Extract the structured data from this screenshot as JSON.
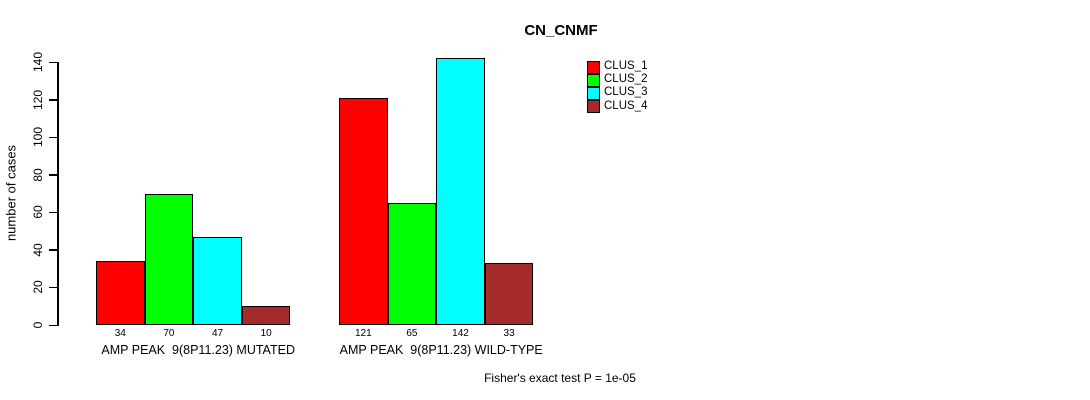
{
  "title": "CN_CNMF",
  "ylabel": "number of cases",
  "footer": "Fisher's exact test P = 1e-05",
  "legend": [
    {
      "label": "CLUS_1",
      "color": "#FF0000"
    },
    {
      "label": "CLUS_2",
      "color": "#00FF00"
    },
    {
      "label": "CLUS_3",
      "color": "#00FFFF"
    },
    {
      "label": "CLUS_4",
      "color": "#A52A2A"
    }
  ],
  "chart_data": {
    "type": "bar",
    "title": "CN_CNMF",
    "ylabel": "number of cases",
    "xlabel": "",
    "categories": [
      "AMP PEAK  9(8P11.23) MUTATED",
      "AMP PEAK  9(8P11.23) WILD-TYPE"
    ],
    "series": [
      {
        "name": "CLUS_1",
        "color": "#FF0000",
        "values": [
          34,
          121
        ]
      },
      {
        "name": "CLUS_2",
        "color": "#00FF00",
        "values": [
          70,
          65
        ]
      },
      {
        "name": "CLUS_3",
        "color": "#00FFFF",
        "values": [
          47,
          142
        ]
      },
      {
        "name": "CLUS_4",
        "color": "#A52A2A",
        "values": [
          10,
          33
        ]
      }
    ],
    "bar_labels": [
      [
        34,
        70,
        47,
        10
      ],
      [
        121,
        65,
        142,
        33
      ]
    ],
    "yticks": [
      0,
      20,
      40,
      60,
      80,
      100,
      120,
      140
    ],
    "ylim": [
      0,
      140
    ],
    "grid": false,
    "legend_position": "top-right",
    "annotation": "Fisher's exact test P = 1e-05"
  }
}
